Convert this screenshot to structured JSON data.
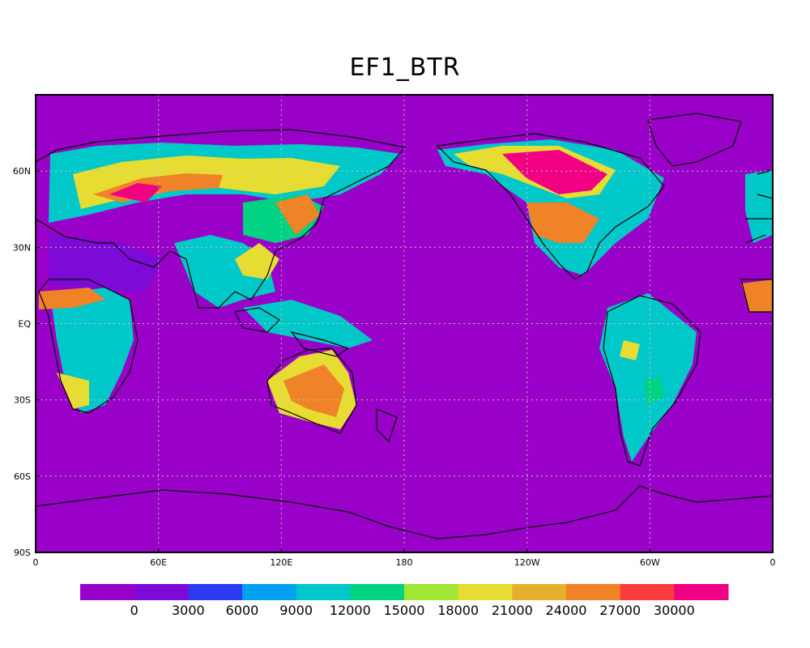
{
  "title": "EF1_BTR",
  "map": {
    "projection": "cylindrical-equidistant",
    "lon_range": [
      0,
      360
    ],
    "lat_range": [
      -90,
      90
    ],
    "background_color": "#9900c8",
    "graticule": "dotted",
    "lon_ticks": [
      "0",
      "60E",
      "120E",
      "180",
      "120W",
      "60W",
      "0"
    ],
    "lat_ticks": [
      "EQ",
      "30N",
      "60N",
      "30S",
      "60S",
      "90S"
    ]
  },
  "colorbar": {
    "colors": [
      "#9900c8",
      "#7d0ad6",
      "#2b3cf0",
      "#00a0f0",
      "#00c8c8",
      "#00d282",
      "#a0e632",
      "#e6dc32",
      "#e6af2d",
      "#f08228",
      "#fa3c3c",
      "#f00082"
    ],
    "labels": [
      "0",
      "3000",
      "6000",
      "9000",
      "12000",
      "15000",
      "18000",
      "21000",
      "24000",
      "27000",
      "30000"
    ]
  }
}
